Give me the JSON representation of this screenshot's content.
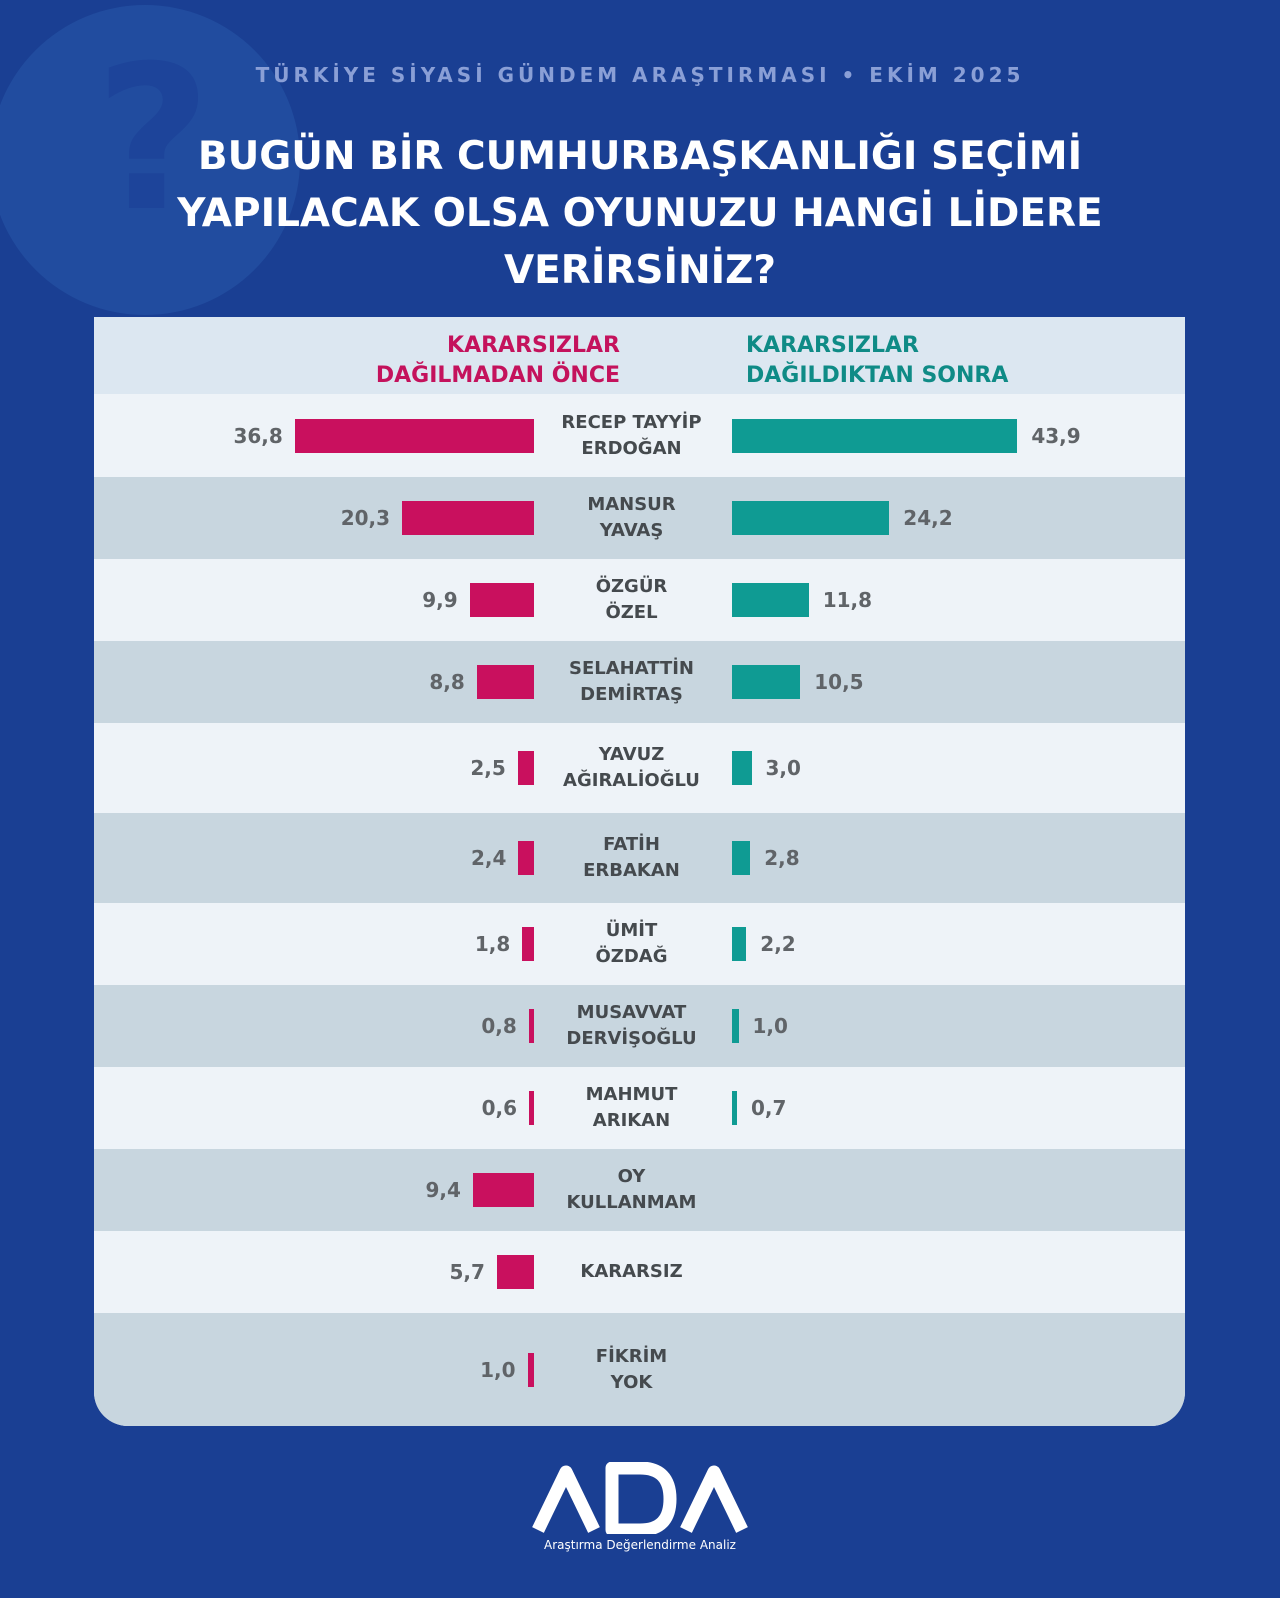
{
  "header": {
    "subtitle": "TÜRKİYE SİYASİ GÜNDEM ARAŞTIRMASI • EKİM 2025",
    "title": "BUGÜN BİR CUMHURBAŞKANLIĞI SEÇİMİ YAPILACAK OLSA OYUNUZU HANGİ LİDERE VERİRSİNİZ?",
    "bg_icon": "question-mark-icon"
  },
  "colors": {
    "background": "#1a3f93",
    "before": "#c9105e",
    "after": "#0f9b93",
    "panel": "#eef3f8",
    "row_alt": "#c8d6df"
  },
  "chart_data": {
    "type": "bar",
    "orientation": "horizontal-butterfly",
    "title": "BUGÜN BİR CUMHURBAŞKANLIĞI SEÇİMİ YAPILACAK OLSA OYUNUZU HANGİ LİDERE VERİRSİNİZ?",
    "series": [
      {
        "name": "KARARSIZLAR DAĞILMADAN ÖNCE",
        "line1": "KARARSIZLAR",
        "line2": "DAĞILMADAN ÖNCE",
        "values": [
          36.8,
          20.3,
          9.9,
          8.8,
          2.5,
          2.4,
          1.8,
          0.8,
          0.6,
          9.4,
          5.7,
          1.0
        ],
        "labels": [
          "36,8",
          "20,3",
          "9,9",
          "8,8",
          "2,5",
          "2,4",
          "1,8",
          "0,8",
          "0,6",
          "9,4",
          "5,7",
          "1,0"
        ]
      },
      {
        "name": "KARARSIZLAR DAĞILDIKTAN SONRA",
        "line1": "KARARSIZLAR",
        "line2": "DAĞILDIKTAN SONRA",
        "values": [
          43.9,
          24.2,
          11.8,
          10.5,
          3.0,
          2.8,
          2.2,
          1.0,
          0.7,
          null,
          null,
          null
        ],
        "labels": [
          "43,9",
          "24,2",
          "11,8",
          "10,5",
          "3,0",
          "2,8",
          "2,2",
          "1,0",
          "0,7",
          null,
          null,
          null
        ]
      }
    ],
    "categories": [
      [
        "RECEP TAYYİP",
        "ERDOĞAN"
      ],
      [
        "MANSUR",
        "YAVAŞ"
      ],
      [
        "ÖZGÜR",
        "ÖZEL"
      ],
      [
        "SELAHATTİN",
        "DEMİRTAŞ"
      ],
      [
        "YAVUZ",
        "AĞIRALİOĞLU"
      ],
      [
        "FATİH",
        "ERBAKAN"
      ],
      [
        "ÜMİT",
        "ÖZDAĞ"
      ],
      [
        "MUSAVVAT",
        "DERVİŞOĞLU"
      ],
      [
        "MAHMUT",
        "ARIKAN"
      ],
      [
        "OY",
        "KULLANMAM"
      ],
      [
        "KARARSIZ"
      ],
      [
        "FİKRİM",
        "YOK"
      ]
    ],
    "units": "%",
    "grid": false
  },
  "footer": {
    "logo_text": "ADA",
    "tagline": "Araştırma Değerlendirme Analiz"
  }
}
